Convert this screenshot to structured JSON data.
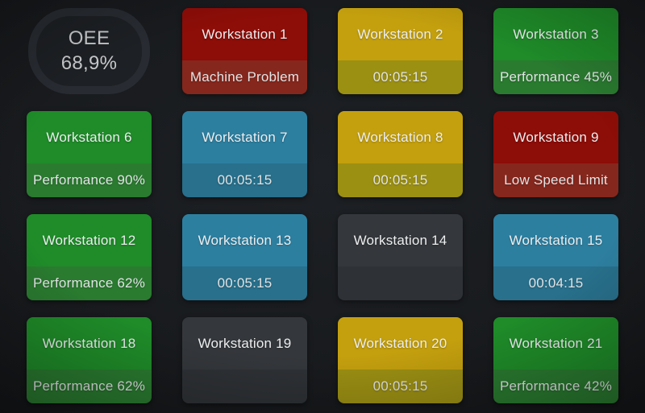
{
  "board": {
    "background": "#17191c"
  },
  "oee_gauge": {
    "label": "OEE",
    "value": "68,9%",
    "ring_color": "#282c32",
    "text_color": "#c9cbcd"
  },
  "states": {
    "red": {
      "top": "#8d0d08",
      "bottom": "#86271d"
    },
    "yellow": {
      "top": "#c4a00e",
      "bottom": "#9c9013"
    },
    "green": {
      "top": "#1f8c29",
      "bottom": "#2a7b30"
    },
    "blue": {
      "top": "#2d7fa0",
      "bottom": "#28708c"
    },
    "gray": {
      "top": "#34373b",
      "bottom": "#2e3135"
    }
  },
  "tiles": [
    {
      "name": "Workstation 1",
      "status": "Machine Problem",
      "state": "red"
    },
    {
      "name": "Workstation 2",
      "status": "00:05:15",
      "state": "yellow"
    },
    {
      "name": "Workstation 3",
      "status": "Performance 45%",
      "state": "green"
    },
    {
      "name": "Workstation 6",
      "status": "Performance 90%",
      "state": "green"
    },
    {
      "name": "Workstation 7",
      "status": "00:05:15",
      "state": "blue"
    },
    {
      "name": "Workstation 8",
      "status": "00:05:15",
      "state": "yellow"
    },
    {
      "name": "Workstation 9",
      "status": "Low Speed Limit",
      "state": "red"
    },
    {
      "name": "Workstation 12",
      "status": "Performance 62%",
      "state": "green"
    },
    {
      "name": "Workstation 13",
      "status": "00:05:15",
      "state": "blue"
    },
    {
      "name": "Workstation 14",
      "status": "",
      "state": "gray"
    },
    {
      "name": "Workstation 15",
      "status": "00:04:15",
      "state": "blue"
    },
    {
      "name": "Workstation 18",
      "status": "Performance 62%",
      "state": "green"
    },
    {
      "name": "Workstation 19",
      "status": "",
      "state": "gray"
    },
    {
      "name": "Workstation 20",
      "status": "00:05:15",
      "state": "yellow"
    },
    {
      "name": "Workstation 21",
      "status": "Performance 42%",
      "state": "green"
    }
  ]
}
